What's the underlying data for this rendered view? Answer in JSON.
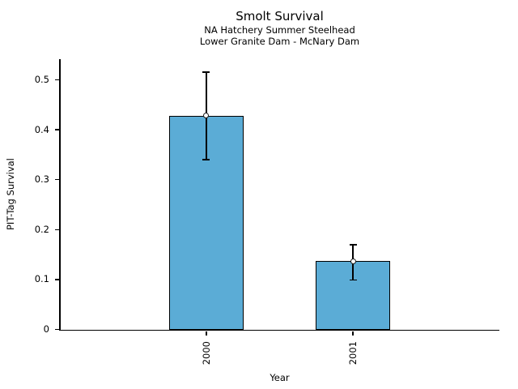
{
  "chart_data": {
    "type": "bar",
    "title": "Smolt Survival",
    "subtitles": [
      "NA Hatchery Summer Steelhead",
      "Lower Granite Dam - McNary Dam"
    ],
    "categories": [
      "2000",
      "2001"
    ],
    "values": [
      0.428,
      0.137
    ],
    "error_low": [
      0.34,
      0.099
    ],
    "error_high": [
      0.515,
      0.17
    ],
    "xlabel": "Year",
    "ylabel": "PIT-Tag Survival",
    "ylim": [
      0,
      0.542
    ],
    "yticks": [
      0,
      0.1,
      0.2,
      0.3,
      0.4,
      0.5
    ],
    "ytick_labels": [
      "0",
      "0.1",
      "0.2",
      "0.3",
      "0.4",
      "0.5"
    ],
    "xtick_rotation": 90,
    "grid": false,
    "legend": null,
    "bar_color": "#5BACD6",
    "bar_edge_color": "#000000",
    "error_color": "#000000",
    "marker": "open-circle",
    "bar_width_frac": 0.168,
    "bar_centers_frac": [
      0.3333,
      0.6667
    ]
  }
}
